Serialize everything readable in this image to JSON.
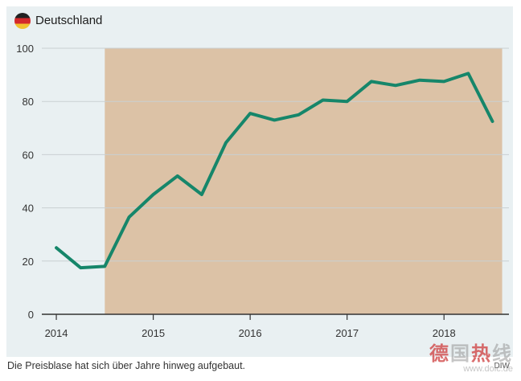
{
  "header": {
    "country": "Deutschland",
    "flag_icon": "germany-flag-icon"
  },
  "caption": "Die Preisblase hat sich über Jahre hinweg aufgebaut.",
  "source": "DIW",
  "watermark": {
    "chars": [
      "德",
      "国",
      "热",
      "线"
    ],
    "url": "www.dolc.de"
  },
  "colors": {
    "line": "#16866a",
    "shade": "#dcc2a6",
    "background": "#e9f0f2",
    "grid": "#c9cfd2",
    "axis": "#333333"
  },
  "chart_data": {
    "type": "line",
    "title": "Deutschland",
    "xlabel": "",
    "ylabel": "",
    "ylim": [
      0,
      100
    ],
    "yticks": [
      0,
      20,
      40,
      60,
      80,
      100
    ],
    "xlim": [
      2013.9,
      2018.67
    ],
    "xticks": [
      {
        "value": 2014,
        "label": "2014"
      },
      {
        "value": 2015,
        "label": "2015"
      },
      {
        "value": 2016,
        "label": "2016"
      },
      {
        "value": 2017,
        "label": "2017"
      },
      {
        "value": 2018,
        "label": "2018"
      }
    ],
    "shaded_range": [
      2014.5,
      2018.6
    ],
    "series": [
      {
        "x": [
          2014.0,
          2014.25,
          2014.5,
          2014.75,
          2015.0,
          2015.25,
          2015.5,
          2015.75,
          2016.0,
          2016.25,
          2016.5,
          2016.75,
          2017.0,
          2017.25,
          2017.5,
          2017.75,
          2018.0,
          2018.25,
          2018.5
        ],
        "values": [
          25,
          17.5,
          18,
          36.5,
          45,
          52,
          45,
          64.5,
          75.5,
          73,
          75,
          80.5,
          80,
          87.5,
          86,
          88,
          87.5,
          90.5,
          72.5
        ]
      }
    ]
  }
}
